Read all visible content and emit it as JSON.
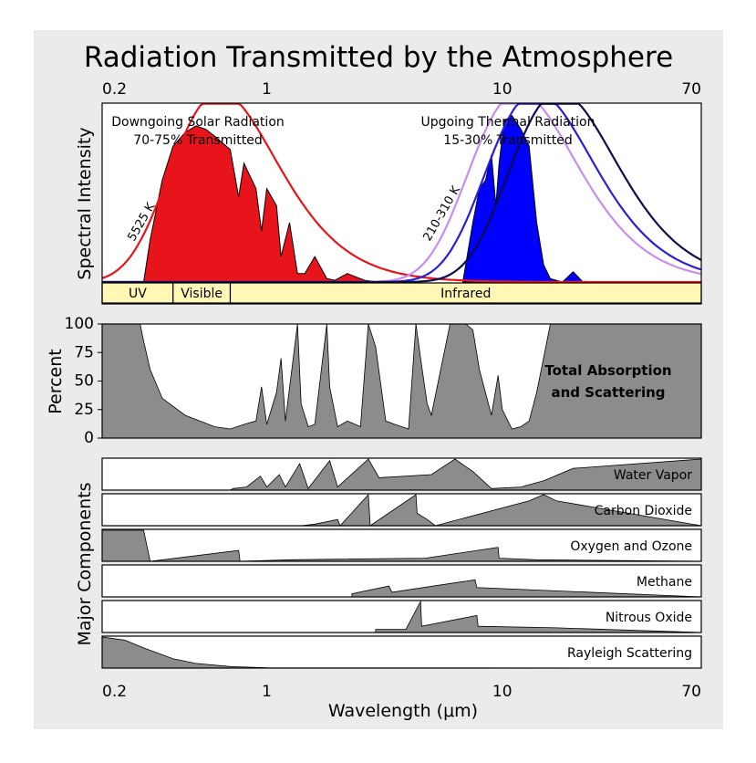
{
  "chart_data": {
    "type": "area",
    "title": "Radiation Transmitted by the Atmosphere",
    "xlabel": "Wavelength (μm)",
    "x_scale": "log",
    "xlim": [
      0.2,
      70
    ],
    "x_ticks": [
      {
        "value": 0.2,
        "label": "0.2"
      },
      {
        "value": 1,
        "label": "1"
      },
      {
        "value": 10,
        "label": "10"
      },
      {
        "value": 70,
        "label": "70"
      }
    ],
    "panels": [
      {
        "id": "spectrum",
        "ylabel": "Spectral Intensity",
        "annotations": {
          "solar_line1": "Downgoing Solar Radiation",
          "solar_line2": "70-75% Transmitted",
          "thermal_line1": "Upgoing Thermal Radiation",
          "thermal_line2": "15-30% Transmitted",
          "solar_temp": "5525 K",
          "thermal_temp": "210-310 K"
        },
        "bands": [
          {
            "label": "UV",
            "from": 0.2,
            "to": 0.4
          },
          {
            "label": "Visible",
            "from": 0.4,
            "to": 0.7
          },
          {
            "label": "Infrared",
            "from": 0.7,
            "to": 70
          }
        ],
        "series": [
          {
            "color": "#e8141b",
            "kind": "blackbody",
            "peak_um": 0.5,
            "peak_rel": 1.0
          },
          {
            "color": "#c98cf0",
            "kind": "blackbody",
            "peak_um": 9.3,
            "peak_rel": 1.0
          },
          {
            "color": "#2a1fd6",
            "kind": "blackbody",
            "peak_um": 11.0,
            "peak_rel": 1.0
          },
          {
            "color": "#0d0d4d",
            "kind": "blackbody",
            "peak_um": 13.8,
            "peak_rel": 1.0
          },
          {
            "color": "#e8141b",
            "kind": "transmitted",
            "x": [
              0.3,
              0.32,
              0.36,
              0.4,
              0.45,
              0.5,
              0.55,
              0.6,
              0.7,
              0.76,
              0.8,
              0.9,
              0.95,
              1.0,
              1.1,
              1.15,
              1.25,
              1.35,
              1.45,
              1.6,
              1.8,
              1.95,
              2.2,
              2.6,
              3.0
            ],
            "values": [
              0,
              0.25,
              0.6,
              0.8,
              0.88,
              0.92,
              0.9,
              0.86,
              0.78,
              0.5,
              0.7,
              0.55,
              0.3,
              0.55,
              0.45,
              0.15,
              0.35,
              0.05,
              0.05,
              0.15,
              0.02,
              0.01,
              0.05,
              0.01,
              0
            ]
          },
          {
            "color": "#0000ff",
            "kind": "transmitted",
            "x": [
              6.8,
              7.5,
              8,
              8.5,
              9,
              9.4,
              9.7,
              10.2,
              11,
              12,
              13,
              14,
              15,
              16,
              18,
              20,
              22
            ],
            "values": [
              0,
              0.35,
              0.55,
              0.6,
              0.75,
              0.45,
              0.7,
              0.95,
              0.98,
              0.9,
              0.8,
              0.35,
              0.1,
              0.02,
              0,
              0.06,
              0
            ]
          }
        ]
      },
      {
        "id": "total",
        "ylabel": "Percent",
        "ylim": [
          0,
          100
        ],
        "y_ticks": [
          0,
          25,
          50,
          75,
          100
        ],
        "label_line1": "Total Absorption",
        "label_line2": "and Scattering",
        "fill": "#8c8c8c",
        "x": [
          0.2,
          0.29,
          0.3,
          0.32,
          0.36,
          0.45,
          0.6,
          0.7,
          0.8,
          0.9,
          0.95,
          1.0,
          1.1,
          1.15,
          1.2,
          1.35,
          1.4,
          1.5,
          1.6,
          1.8,
          1.85,
          2.0,
          2.2,
          2.5,
          2.7,
          2.9,
          3.2,
          3.5,
          4.0,
          4.3,
          4.5,
          4.8,
          5.0,
          6.0,
          7.0,
          7.5,
          8.0,
          9.0,
          9.6,
          10.0,
          11.0,
          12.0,
          13.0,
          14.0,
          16.0,
          20.0,
          25.0,
          70.0
        ],
        "values": [
          100,
          100,
          85,
          60,
          35,
          20,
          10,
          8,
          12,
          15,
          45,
          12,
          40,
          70,
          15,
          100,
          30,
          10,
          12,
          100,
          45,
          10,
          15,
          10,
          100,
          80,
          15,
          12,
          8,
          100,
          70,
          30,
          20,
          100,
          100,
          95,
          60,
          20,
          55,
          25,
          8,
          10,
          15,
          40,
          100,
          100,
          100,
          100
        ]
      }
    ],
    "components": {
      "ylabel": "Major Components",
      "fill": "#8c8c8c",
      "rows": [
        {
          "name": "Water Vapor",
          "x": [
            0.7,
            0.72,
            0.82,
            0.94,
            1.0,
            1.13,
            1.2,
            1.38,
            1.5,
            1.85,
            2.0,
            2.7,
            3.0,
            5.0,
            6.3,
            7.5,
            9,
            12,
            15,
            20,
            70
          ],
          "values": [
            0,
            0.05,
            0.1,
            0.45,
            0.1,
            0.5,
            0.1,
            0.85,
            0.05,
            0.95,
            0.1,
            1,
            0.4,
            0.5,
            1,
            0.6,
            0.05,
            0.1,
            0.3,
            0.7,
            1
          ]
        },
        {
          "name": "Carbon Dioxide",
          "x": [
            1.4,
            1.6,
            2.0,
            2.05,
            2.7,
            2.75,
            4.3,
            4.35,
            4.8,
            5.2,
            13,
            15,
            17,
            70
          ],
          "values": [
            0,
            0.05,
            0.2,
            0,
            1,
            0,
            1,
            0.4,
            0.2,
            0,
            0.8,
            1,
            0.8,
            0
          ]
        },
        {
          "name": "Oxygen and Ozone",
          "x": [
            0.2,
            0.3,
            0.32,
            0.76,
            0.77,
            1.27,
            4.7,
            9.6,
            9.7,
            14,
            70
          ],
          "values": [
            1,
            1,
            0,
            0.35,
            0,
            0.05,
            0.1,
            0.45,
            0.1,
            0.05,
            0
          ]
        },
        {
          "name": "Methane",
          "x": [
            2.3,
            3.3,
            3.4,
            7.66,
            7.8,
            70
          ],
          "values": [
            0.1,
            0.35,
            0.15,
            0.55,
            0.3,
            0
          ]
        },
        {
          "name": "Nitrous Oxide",
          "x": [
            2.9,
            3.9,
            4.5,
            4.55,
            7.8,
            7.9,
            17,
            70
          ],
          "values": [
            0.1,
            0.1,
            1,
            0.2,
            0.55,
            0.2,
            0.15,
            0
          ]
        },
        {
          "name": "Rayleigh Scattering",
          "x": [
            0.2,
            0.25,
            0.3,
            0.4,
            0.5,
            0.7,
            1.0,
            70
          ],
          "values": [
            1,
            0.9,
            0.65,
            0.3,
            0.15,
            0.05,
            0.01,
            0
          ]
        }
      ]
    }
  }
}
